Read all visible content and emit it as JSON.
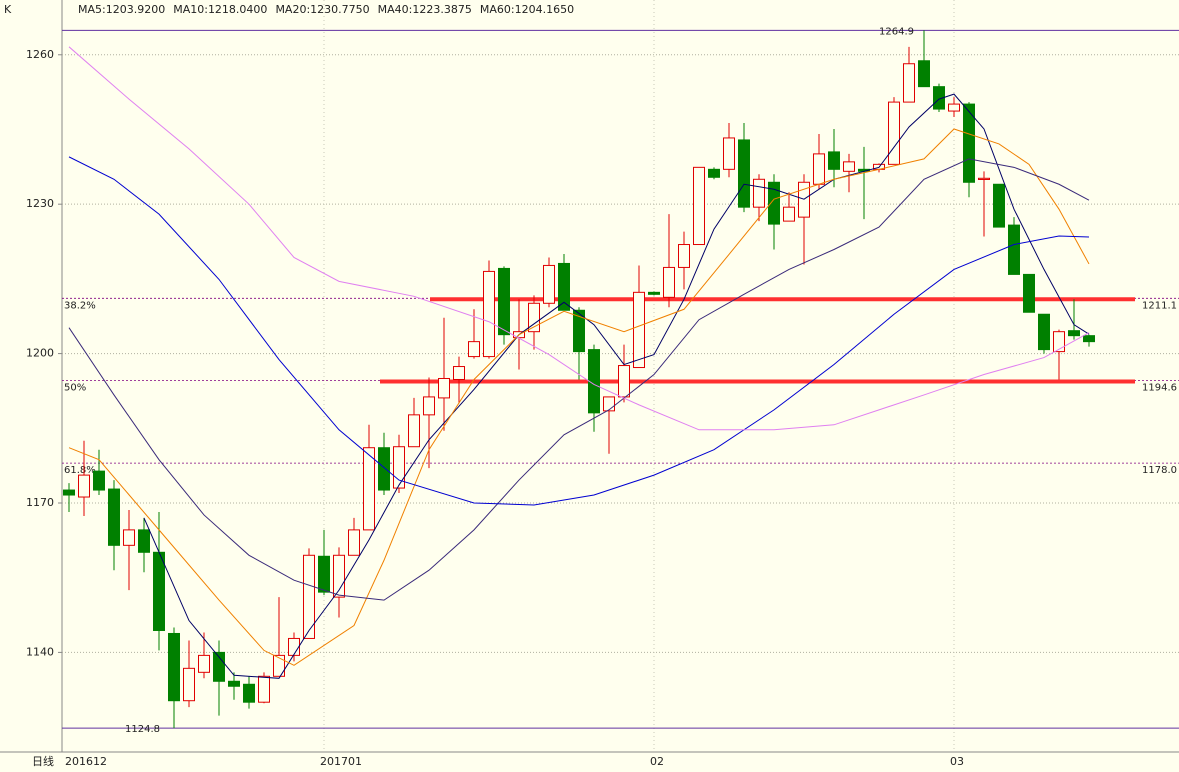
{
  "chart_data": {
    "type": "candlestick",
    "title": "K",
    "period_label": "日线",
    "categories": [
      "201612",
      null,
      null,
      null,
      null,
      null,
      null,
      null,
      null,
      null,
      null,
      null,
      null,
      null,
      null,
      null,
      null,
      "201701",
      null,
      null,
      null,
      null,
      null,
      null,
      null,
      null,
      null,
      null,
      null,
      null,
      null,
      null,
      null,
      null,
      null,
      null,
      null,
      null,
      null,
      "02",
      null,
      null,
      null,
      null,
      null,
      null,
      null,
      null,
      null,
      null,
      null,
      null,
      null,
      null,
      null,
      null,
      null,
      null,
      null,
      "03",
      null,
      null,
      null,
      null,
      null,
      null,
      null,
      null,
      null
    ],
    "open": [
      1172.6,
      1171.2,
      1176.4,
      1172.8,
      1161.5,
      1164.6,
      1160.1,
      1143.8,
      1130.3,
      1136.0,
      1140.0,
      1134.2,
      1133.6,
      1130.0,
      1135.2,
      1139.4,
      1142.8,
      1159.3,
      1151.1,
      1159.5,
      1164.6,
      1181.1,
      1173.0,
      1181.3,
      1187.7,
      1191.1,
      1194.8,
      1199.4,
      1199.4,
      1217.1,
      1203.2,
      1204.4,
      1210.1,
      1218.1,
      1208.7,
      1200.8,
      1188.5,
      1191.3,
      1197.2,
      1212.3,
      1211.3,
      1217.3,
      1221.9,
      1237.0,
      1237.0,
      1242.9,
      1229.4,
      1234.4,
      1226.6,
      1227.4,
      1234.0,
      1240.5,
      1236.6,
      1237.0,
      1237.0,
      1238.0,
      1250.5,
      1258.8,
      1253.6,
      1248.7,
      1250.1,
      1235.0,
      1234.0,
      1225.8,
      1215.9,
      1207.9,
      1200.4,
      1204.6,
      1203.6
    ],
    "high": [
      1174.0,
      1182.5,
      1180.7,
      1174.6,
      1168.6,
      1167.0,
      1168.2,
      1145.0,
      1142.4,
      1144.0,
      1142.4,
      1136.0,
      1135.2,
      1136.0,
      1151.1,
      1144.0,
      1160.9,
      1164.6,
      1161.1,
      1167.0,
      1185.7,
      1184.1,
      1183.7,
      1191.1,
      1195.2,
      1207.2,
      1199.4,
      1208.9,
      1218.7,
      1217.5,
      1210.9,
      1211.7,
      1219.3,
      1220.0,
      1209.3,
      1201.8,
      1190.0,
      1201.8,
      1217.7,
      1212.5,
      1228.0,
      1224.5,
      1237.4,
      1237.4,
      1246.3,
      1246.3,
      1236.0,
      1236.0,
      1232.4,
      1236.0,
      1244.1,
      1245.1,
      1240.1,
      1241.5,
      1238.2,
      1251.5,
      1261.6,
      1264.9,
      1254.2,
      1251.5,
      1250.5,
      1236.6,
      1234.0,
      1227.4,
      1215.9,
      1207.9,
      1204.8,
      1210.9,
      1203.8
    ],
    "low": [
      1168.2,
      1167.4,
      1171.6,
      1156.5,
      1152.5,
      1156.1,
      1140.4,
      1124.8,
      1129.0,
      1134.8,
      1127.3,
      1130.5,
      1128.7,
      1129.8,
      1135.2,
      1138.2,
      1142.8,
      1151.5,
      1147.0,
      1159.5,
      1164.6,
      1171.6,
      1172.0,
      1181.3,
      1177.0,
      1184.5,
      1190.0,
      1199.0,
      1199.0,
      1201.8,
      1196.8,
      1200.8,
      1209.3,
      1208.7,
      1194.8,
      1184.3,
      1179.9,
      1190.2,
      1197.2,
      1211.7,
      1209.3,
      1212.9,
      1221.9,
      1235.0,
      1235.4,
      1228.4,
      1226.6,
      1220.9,
      1226.6,
      1217.9,
      1233.0,
      1233.4,
      1232.4,
      1227.0,
      1236.4,
      1238.0,
      1250.5,
      1253.6,
      1248.5,
      1247.5,
      1231.4,
      1223.5,
      1225.4,
      1215.9,
      1208.3,
      1200.0,
      1194.8,
      1202.8,
      1201.4
    ],
    "close": [
      1171.6,
      1175.6,
      1172.6,
      1161.5,
      1164.6,
      1160.1,
      1144.4,
      1130.3,
      1136.8,
      1139.4,
      1134.2,
      1133.2,
      1130.0,
      1135.2,
      1139.4,
      1142.8,
      1159.5,
      1152.1,
      1159.5,
      1164.6,
      1181.1,
      1172.6,
      1181.3,
      1187.7,
      1191.3,
      1195.0,
      1197.4,
      1202.4,
      1216.5,
      1203.8,
      1204.4,
      1210.1,
      1217.7,
      1208.7,
      1200.4,
      1188.1,
      1191.3,
      1197.6,
      1212.3,
      1211.9,
      1217.3,
      1221.9,
      1237.4,
      1235.4,
      1243.3,
      1229.4,
      1235.0,
      1226.0,
      1229.4,
      1234.4,
      1240.1,
      1237.0,
      1238.5,
      1236.6,
      1238.0,
      1250.5,
      1258.2,
      1253.6,
      1249.1,
      1250.1,
      1234.4,
      1235.2,
      1225.4,
      1215.9,
      1208.3,
      1200.8,
      1204.4,
      1203.6,
      1202.4
    ],
    "up_color": "#e00000",
    "down_color": "#008000",
    "series": [
      {
        "name": "MA5:1203.9200",
        "color": "#000066",
        "x": [
          5,
          8,
          11,
          14,
          16,
          18,
          20,
          22,
          24,
          27,
          30,
          33,
          35,
          37,
          39,
          41,
          43,
          45,
          47,
          49,
          51,
          54,
          56,
          58,
          59,
          61,
          63,
          65,
          67,
          68
        ],
        "values": [
          1167.0,
          1146.4,
          1135.4,
          1134.8,
          1144.4,
          1152.5,
          1162.6,
          1173.6,
          1182.7,
          1192.8,
          1203.8,
          1210.3,
          1205.8,
          1197.8,
          1199.8,
          1210.9,
          1225.0,
          1234.0,
          1233.0,
          1231.0,
          1235.0,
          1237.4,
          1245.5,
          1251.1,
          1252.1,
          1245.1,
          1229.0,
          1216.9,
          1205.8,
          1203.9
        ]
      },
      {
        "name": "MA10:1218.0400",
        "color": "#f08000",
        "x": [
          0,
          2,
          6,
          10,
          13,
          15,
          19,
          21,
          24,
          27,
          30,
          33,
          37,
          41,
          44,
          47,
          51,
          54,
          57,
          59,
          62,
          64,
          66,
          68
        ],
        "values": [
          1181.1,
          1178.7,
          1164.6,
          1150.5,
          1140.4,
          1137.4,
          1145.4,
          1158.5,
          1180.7,
          1194.8,
          1203.8,
          1208.5,
          1204.4,
          1208.9,
          1219.9,
          1231.0,
          1235.0,
          1237.0,
          1239.1,
          1245.1,
          1242.1,
          1238.0,
          1229.0,
          1218.0
        ]
      },
      {
        "name": "MA20:1230.7750",
        "color": "#3a2a7a",
        "x": [
          0,
          3,
          6,
          9,
          12,
          15,
          18,
          21,
          24,
          27,
          30,
          33,
          36,
          39,
          42,
          45,
          48,
          51,
          54,
          57,
          60,
          63,
          66,
          68
        ],
        "values": [
          1205.2,
          1191.7,
          1178.7,
          1167.6,
          1159.5,
          1154.5,
          1151.5,
          1150.5,
          1156.5,
          1164.6,
          1174.6,
          1183.7,
          1188.7,
          1195.8,
          1206.8,
          1211.9,
          1216.9,
          1220.9,
          1225.4,
          1235.0,
          1239.1,
          1237.4,
          1234.0,
          1230.8
        ]
      },
      {
        "name": "MA40:1223.3875",
        "color": "#0000d0",
        "x": [
          0,
          3,
          6,
          10,
          14,
          18,
          22,
          27,
          31,
          35,
          39,
          43,
          47,
          51,
          55,
          59,
          63,
          66,
          68
        ],
        "values": [
          1239.5,
          1235.0,
          1228.0,
          1214.9,
          1198.8,
          1184.7,
          1174.6,
          1170.0,
          1169.6,
          1171.6,
          1175.6,
          1180.7,
          1188.7,
          1197.8,
          1207.9,
          1216.9,
          1221.9,
          1223.6,
          1223.4
        ]
      },
      {
        "name": "MA60:1204.1650",
        "color": "#e080f0",
        "x": [
          0,
          4,
          8,
          12,
          15,
          18,
          23,
          28,
          32,
          35,
          38,
          42,
          47,
          51,
          54,
          57,
          61,
          65,
          68
        ],
        "values": [
          1261.6,
          1251.1,
          1241.1,
          1230.0,
          1219.3,
          1214.5,
          1211.5,
          1206.4,
          1199.8,
          1193.8,
          1189.7,
          1184.7,
          1184.7,
          1185.7,
          1188.7,
          1191.7,
          1195.8,
          1199.2,
          1204.2
        ]
      }
    ],
    "fib_levels": [
      {
        "label": "38.2%",
        "value": 1211.1,
        "highlight": true
      },
      {
        "label": "50%",
        "value": 1194.6,
        "highlight": true
      },
      {
        "label": "61.8%",
        "value": {
          "value": 1178,
          "label": "1178.0"
        },
        "highlight": false
      }
    ],
    "fib_color": "#800080",
    "highlight_color": "#ff3030",
    "ylim": [
      1120,
      1271
    ],
    "yticks": [
      1140,
      1170,
      1200,
      1230,
      1260
    ],
    "grid": true
  }
}
